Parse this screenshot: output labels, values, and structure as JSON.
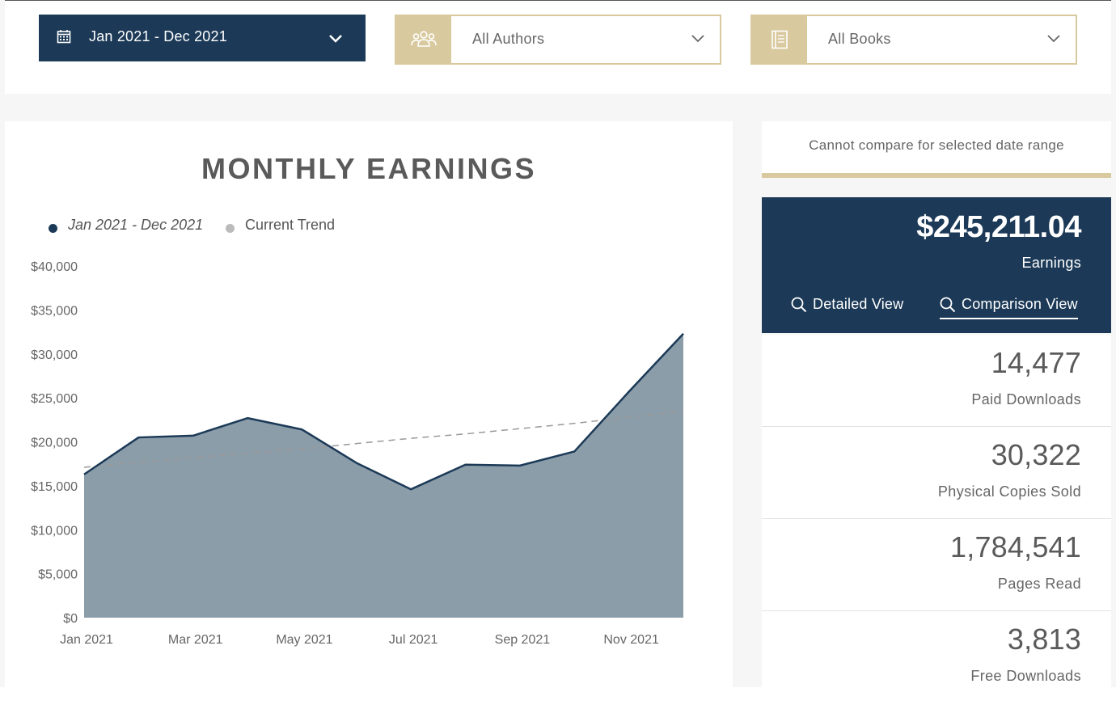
{
  "filters": {
    "date_range": "Jan 2021 - Dec 2021",
    "authors": "All Authors",
    "books": "All Books"
  },
  "chart": {
    "title": "MONTHLY EARNINGS",
    "legend": [
      "Jan 2021 - Dec 2021",
      "Current Trend"
    ]
  },
  "chart_data": {
    "type": "area",
    "title": "MONTHLY EARNINGS",
    "x": [
      "Jan 2021",
      "Feb 2021",
      "Mar 2021",
      "Apr 2021",
      "May 2021",
      "Jun 2021",
      "Jul 2021",
      "Aug 2021",
      "Sep 2021",
      "Oct 2021",
      "Nov 2021",
      "Dec 2021"
    ],
    "x_tick_labels": [
      "Jan 2021",
      "Mar 2021",
      "May 2021",
      "Jul 2021",
      "Sep 2021",
      "Nov 2021"
    ],
    "y_tick_labels": [
      "$0",
      "$5,000",
      "$10,000",
      "$15,000",
      "$20,000",
      "$25,000",
      "$30,000",
      "$35,000",
      "$40,000"
    ],
    "ylim": [
      0,
      40000
    ],
    "series": [
      {
        "name": "Jan 2021 - Dec 2021",
        "values": [
          16300,
          20500,
          20700,
          22700,
          21400,
          17600,
          14600,
          17400,
          17300,
          18900,
          25700,
          32300
        ],
        "color": "#1c3a57",
        "fill": "#8c9daa"
      },
      {
        "name": "Current Trend",
        "values": [
          17100,
          17700,
          18200,
          18700,
          19200,
          19800,
          20400,
          20900,
          21500,
          22100,
          22800,
          23500
        ],
        "color": "#999999",
        "style": "dashed"
      }
    ],
    "grid": false,
    "legend_position": "top-left"
  },
  "compare": {
    "message": "Cannot compare for selected date range"
  },
  "earnings": {
    "value": "$245,211.04",
    "label": "Earnings",
    "detailed_view": "Detailed View",
    "comparison_view": "Comparison View"
  },
  "stats": [
    {
      "value": "14,477",
      "label": "Paid Downloads"
    },
    {
      "value": "30,322",
      "label": "Physical Copies Sold"
    },
    {
      "value": "1,784,541",
      "label": "Pages Read"
    },
    {
      "value": "3,813",
      "label": "Free Downloads"
    }
  ],
  "colors": {
    "navy": "#1c3a57",
    "gold": "#d9c99e",
    "area_fill": "#8c9daa",
    "trend": "#999999"
  }
}
